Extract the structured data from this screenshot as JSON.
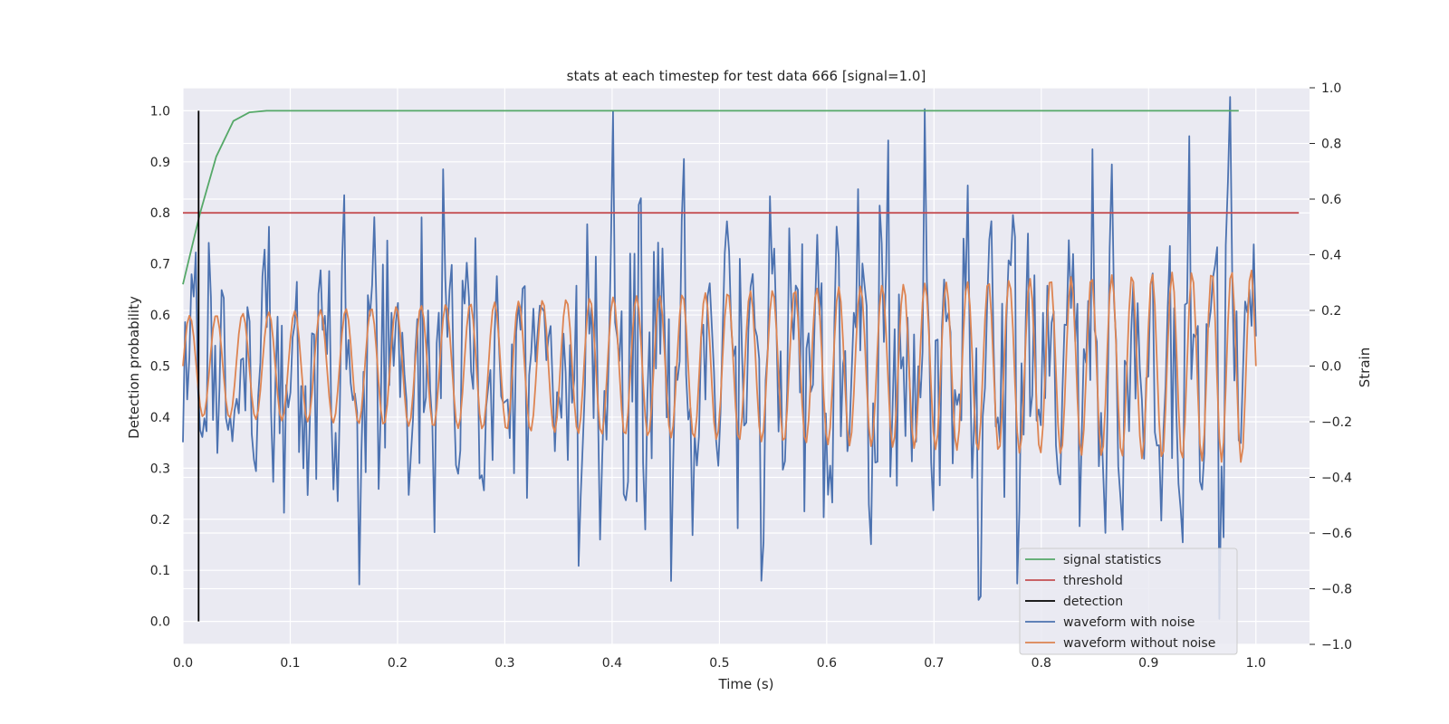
{
  "chart_data": {
    "type": "line",
    "title": "stats at each timestep for test data 666 [signal=1.0]",
    "xlabel": "Time (s)",
    "ylabel_left": "Detection probability",
    "ylabel_right": "Strain",
    "xlim": [
      0.0,
      1.05
    ],
    "ylim_left": [
      -0.045,
      1.045
    ],
    "ylim_right": [
      -1.0,
      1.0
    ],
    "x_ticks": [
      "0.0",
      "0.1",
      "0.2",
      "0.3",
      "0.4",
      "0.5",
      "0.6",
      "0.7",
      "0.8",
      "0.9",
      "1.0"
    ],
    "y_ticks_left": [
      "0.0",
      "0.1",
      "0.2",
      "0.3",
      "0.4",
      "0.5",
      "0.6",
      "0.7",
      "0.8",
      "0.9",
      "1.0"
    ],
    "y_ticks_right": [
      "−1.0",
      "−0.8",
      "−0.6",
      "−0.4",
      "−0.2",
      "0.0",
      "0.2",
      "0.4",
      "0.6",
      "0.8",
      "1.0"
    ],
    "grid": true,
    "background": "#eaeaf2",
    "legend_position": "lower-right",
    "series": [
      {
        "name": "signal statistics",
        "axis": "left",
        "color": "#55a868",
        "x": [
          0.0,
          0.016,
          0.031,
          0.047,
          0.062,
          0.078,
          0.094,
          0.2,
          0.4,
          0.6,
          0.8,
          0.984
        ],
        "y": [
          0.66,
          0.8,
          0.91,
          0.98,
          0.997,
          1.0,
          1.0,
          1.0,
          1.0,
          1.0,
          1.0,
          1.0
        ]
      },
      {
        "name": "threshold",
        "axis": "left",
        "color": "#c44e52",
        "x": [
          0.0,
          1.04
        ],
        "y": [
          0.8,
          0.8
        ]
      },
      {
        "name": "detection",
        "axis": "left",
        "color": "#000000",
        "x": [
          0.0146,
          0.0146
        ],
        "y": [
          0.0,
          1.0
        ]
      },
      {
        "name": "waveform with noise",
        "axis": "right",
        "color": "#4c72b0",
        "n_points": 500,
        "x_range": [
          0.0,
          1.0
        ],
        "approx_envelope": [
          -0.95,
          1.0
        ]
      },
      {
        "name": "waveform without noise",
        "axis": "right",
        "color": "#dd8452",
        "n_points": 500,
        "x_range": [
          0.0,
          1.0
        ],
        "approx_amplitude_start": 0.18,
        "approx_amplitude_end": 0.35,
        "approx_frequency_start_hz": 40,
        "approx_frequency_end_hz": 55
      }
    ]
  }
}
